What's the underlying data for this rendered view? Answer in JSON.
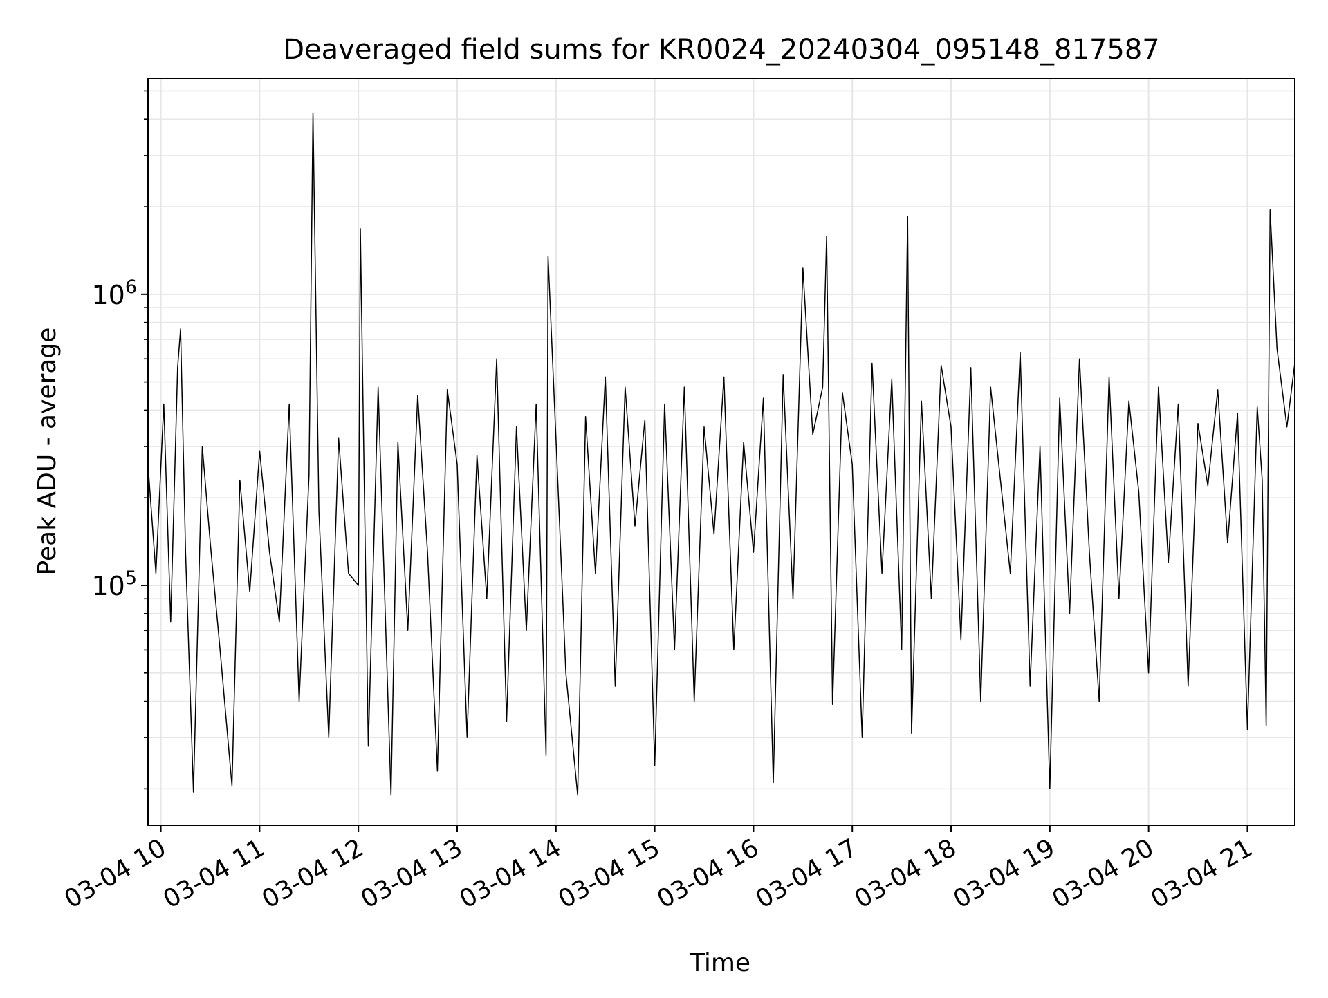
{
  "chart_data": {
    "type": "line",
    "title": "Deaveraged field sums for KR0024_20240304_095148_817587",
    "xlabel": "Time",
    "ylabel": "Peak ADU - average",
    "y_scale": "log",
    "y_tick_base": "10",
    "y_ticks": [
      {
        "value": 100000,
        "exponent": "5"
      },
      {
        "value": 1000000,
        "exponent": "6"
      }
    ],
    "ylim": [
      15000,
      5500000
    ],
    "x_ticks": [
      {
        "hour": 10,
        "label": "03-04 10"
      },
      {
        "hour": 11,
        "label": "03-04 11"
      },
      {
        "hour": 12,
        "label": "03-04 12"
      },
      {
        "hour": 13,
        "label": "03-04 13"
      },
      {
        "hour": 14,
        "label": "03-04 14"
      },
      {
        "hour": 15,
        "label": "03-04 15"
      },
      {
        "hour": 16,
        "label": "03-04 16"
      },
      {
        "hour": 17,
        "label": "03-04 17"
      },
      {
        "hour": 18,
        "label": "03-04 18"
      },
      {
        "hour": 19,
        "label": "03-04 19"
      },
      {
        "hour": 20,
        "label": "03-04 20"
      },
      {
        "hour": 21,
        "label": "03-04 21"
      }
    ],
    "xlim_hours": [
      9.87,
      21.48
    ],
    "grid": true,
    "line_color": "#000000",
    "grid_color": "#e6e6e6",
    "series": [
      {
        "x_hours": [
          9.87,
          9.95,
          10.03,
          10.1,
          10.17,
          10.2,
          10.25,
          10.33,
          10.42,
          10.5,
          10.6,
          10.72,
          10.8,
          10.9,
          11.0,
          11.1,
          11.2,
          11.3,
          11.4,
          11.5,
          11.54,
          11.6,
          11.7,
          11.8,
          11.9,
          12.0,
          12.02,
          12.1,
          12.2,
          12.33,
          12.4,
          12.5,
          12.6,
          12.7,
          12.8,
          12.9,
          13.0,
          13.1,
          13.2,
          13.3,
          13.4,
          13.5,
          13.6,
          13.7,
          13.8,
          13.9,
          13.92,
          14.0,
          14.1,
          14.22,
          14.3,
          14.4,
          14.5,
          14.6,
          14.7,
          14.8,
          14.9,
          15.0,
          15.1,
          15.2,
          15.3,
          15.4,
          15.5,
          15.6,
          15.7,
          15.8,
          15.9,
          16.0,
          16.1,
          16.2,
          16.3,
          16.4,
          16.5,
          16.6,
          16.7,
          16.74,
          16.8,
          16.9,
          17.0,
          17.1,
          17.2,
          17.3,
          17.4,
          17.5,
          17.56,
          17.6,
          17.7,
          17.8,
          17.9,
          18.0,
          18.1,
          18.2,
          18.3,
          18.4,
          18.5,
          18.6,
          18.7,
          18.8,
          18.9,
          19.0,
          19.1,
          19.2,
          19.3,
          19.4,
          19.5,
          19.6,
          19.7,
          19.8,
          19.9,
          20.0,
          20.1,
          20.2,
          20.3,
          20.4,
          20.5,
          20.6,
          20.7,
          20.8,
          20.9,
          21.0,
          21.1,
          21.15,
          21.19,
          21.23,
          21.3,
          21.4,
          21.48
        ],
        "y_values": [
          260000,
          110000,
          420000,
          75000,
          560000,
          760000,
          130000,
          19500,
          300000,
          140000,
          60000,
          20500,
          230000,
          95000,
          290000,
          130000,
          75000,
          420000,
          40000,
          240000,
          4200000,
          180000,
          30000,
          320000,
          110000,
          100000,
          1680000,
          28000,
          480000,
          19000,
          310000,
          70000,
          450000,
          130000,
          23000,
          470000,
          260000,
          30000,
          280000,
          90000,
          600000,
          34000,
          350000,
          70000,
          420000,
          26000,
          1350000,
          320000,
          50000,
          19000,
          380000,
          110000,
          520000,
          45000,
          480000,
          160000,
          370000,
          24000,
          420000,
          60000,
          480000,
          40000,
          350000,
          150000,
          520000,
          60000,
          310000,
          130000,
          440000,
          21000,
          530000,
          90000,
          1230000,
          330000,
          480000,
          1580000,
          39000,
          460000,
          260000,
          30000,
          580000,
          110000,
          510000,
          60000,
          1850000,
          31000,
          430000,
          90000,
          570000,
          350000,
          65000,
          560000,
          40000,
          480000,
          230000,
          110000,
          630000,
          45000,
          300000,
          20000,
          440000,
          80000,
          600000,
          130000,
          40000,
          520000,
          90000,
          430000,
          210000,
          50000,
          480000,
          120000,
          420000,
          45000,
          360000,
          220000,
          470000,
          140000,
          390000,
          32000,
          410000,
          230000,
          33000,
          1950000,
          650000,
          350000,
          580000
        ]
      }
    ]
  }
}
